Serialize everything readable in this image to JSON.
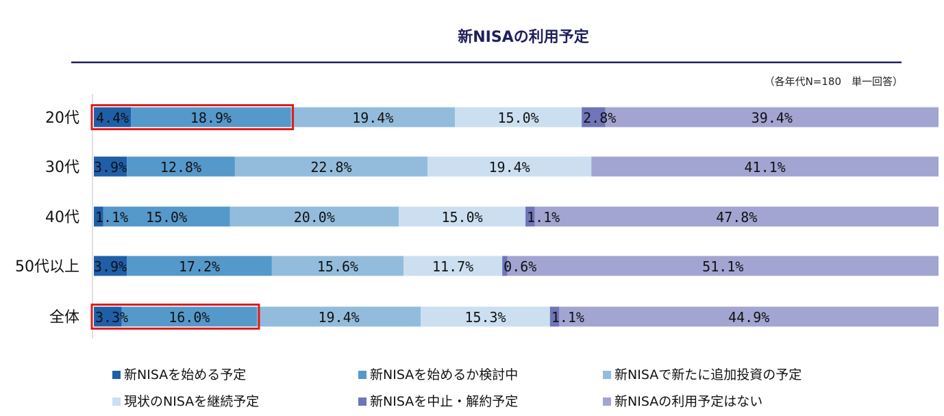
{
  "chart_data": {
    "type": "bar",
    "orientation": "horizontal-stacked-100",
    "title": "新NISAの利用予定",
    "note": "（各年代N=180　単一回答）",
    "categories": [
      "20代",
      "30代",
      "40代",
      "50代以上",
      "全体"
    ],
    "series": [
      {
        "name": "新NISAを始める予定",
        "color": "#1f5fa8",
        "values": [
          4.4,
          3.9,
          1.1,
          3.9,
          3.3
        ],
        "labels": [
          "4.4%",
          "3.9%",
          "1.1%",
          "3.9%",
          "3.3%"
        ]
      },
      {
        "name": "新NISAを始めるか検討中",
        "color": "#5599cb",
        "values": [
          18.9,
          12.8,
          15.0,
          17.2,
          16.0
        ],
        "labels": [
          "18.9%",
          "12.8%",
          "15.0%",
          "17.2%",
          "16.0%"
        ]
      },
      {
        "name": "新NISAで新たに追加投資の予定",
        "color": "#93bcdc",
        "values": [
          19.4,
          22.8,
          20.0,
          15.6,
          19.4
        ],
        "labels": [
          "19.4%",
          "22.8%",
          "20.0%",
          "15.6%",
          "19.4%"
        ]
      },
      {
        "name": "現状のNISAを継続予定",
        "color": "#cbdff0",
        "values": [
          15.0,
          19.4,
          15.0,
          11.7,
          15.3
        ],
        "labels": [
          "15.0%",
          "19.4%",
          "15.0%",
          "11.7%",
          "15.3%"
        ]
      },
      {
        "name": "新NISAを中止・解約予定",
        "color": "#6f75b8",
        "values": [
          2.8,
          0.0,
          1.1,
          0.6,
          1.1
        ],
        "labels": [
          "2.8%",
          "",
          "1.1%",
          "0.6%",
          "1.1%"
        ]
      },
      {
        "name": "新NISAの利用予定はない",
        "color": "#a2a5d1",
        "values": [
          39.4,
          41.1,
          47.8,
          51.1,
          44.9
        ],
        "labels": [
          "39.4%",
          "41.1%",
          "47.8%",
          "51.1%",
          "44.9%"
        ]
      }
    ],
    "highlights": [
      {
        "category": "20代",
        "series_from": 0,
        "series_to": 1,
        "color": "#e01b1b"
      },
      {
        "category": "全体",
        "series_from": 0,
        "series_to": 1,
        "color": "#e01b1b"
      }
    ],
    "colors": {
      "title_rule": "#1f1f5c",
      "axis": "#bfbfbf"
    }
  }
}
